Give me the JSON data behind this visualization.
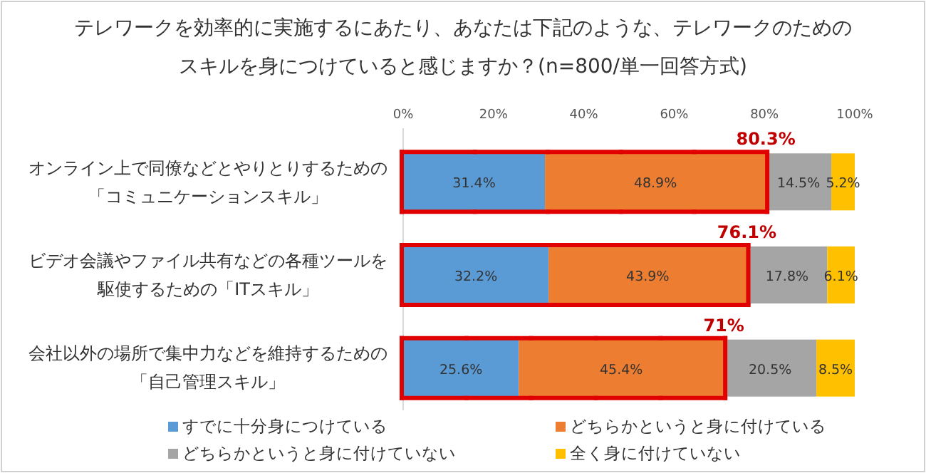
{
  "chart_data": {
    "type": "bar",
    "orientation": "horizontal",
    "stacked": true,
    "title": "テレワークを効率的に実施するにあたり、あなたは下記のような、テレワークのためのスキルを身につけていると感じますか？(n=800/単一回答方式)",
    "categories": [
      "オンライン上で同僚などとやりとりするための「コミュニケーションスキル」",
      "ビデオ会議やファイル共有などの各種ツールを駆使するための「ITスキル」",
      "会社以外の場所で集中力などを維持するための「自己管理スキル」"
    ],
    "series": [
      {
        "name": "すでに十分身につけている",
        "color": "#5b9bd5",
        "values": [
          31.4,
          32.2,
          25.6
        ],
        "value_labels": [
          "31.4%",
          "32.2%",
          "25.6%"
        ]
      },
      {
        "name": "どちらかというと身に付けている",
        "color": "#ed7d31",
        "values": [
          48.9,
          43.9,
          45.4
        ],
        "value_labels": [
          "48.9%",
          "43.9%",
          "45.4%"
        ]
      },
      {
        "name": "どちらかというと身に付けていない",
        "color": "#a5a5a5",
        "values": [
          14.5,
          17.8,
          20.5
        ],
        "value_labels": [
          "14.5%",
          "17.8%",
          "20.5%"
        ]
      },
      {
        "name": "全く身に付けていない",
        "color": "#ffc000",
        "values": [
          5.2,
          6.1,
          8.5
        ],
        "value_labels": [
          "5.2%",
          "6.1%",
          "8.5%"
        ]
      }
    ],
    "xlim": [
      0,
      100
    ],
    "xticks": [
      {
        "value": 0,
        "label": "0%"
      },
      {
        "value": 20,
        "label": "20%"
      },
      {
        "value": 40,
        "label": "40%"
      },
      {
        "value": 60,
        "label": "60%"
      },
      {
        "value": 80,
        "label": "80%"
      },
      {
        "value": 100,
        "label": "100%"
      }
    ],
    "legend": "bottom",
    "annotations": [
      {
        "text": "80.3%",
        "x": 80.3,
        "y": "オンライン上で同僚などとやりとりするための「コミュニケーションスキル」"
      },
      {
        "text": "76.1%",
        "x": 76.1,
        "y": "ビデオ会議やファイル共有などの各種ツールを駆使するための「ITスキル」"
      },
      {
        "text": "71%",
        "x": 71,
        "y": "会社以外の場所で集中力などを維持するための「自己管理スキル」"
      }
    ]
  }
}
